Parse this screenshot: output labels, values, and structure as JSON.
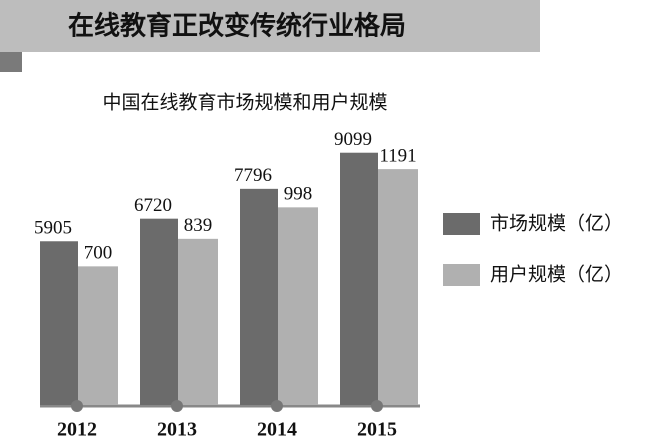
{
  "banner": "在线教育正改变传统行业格局",
  "chart_data": {
    "type": "bar",
    "title": "中国在线教育市场规模和用户规模",
    "categories": [
      "2012",
      "2013",
      "2014",
      "2015"
    ],
    "series": [
      {
        "name": "市场规模（亿）",
        "color": "#6b6b6b",
        "values": [
          5905,
          6720,
          7796,
          9099
        ]
      },
      {
        "name": "用户规模（亿）",
        "color": "#b0b0b0",
        "values": [
          700,
          839,
          998,
          1191
        ],
        "axis": "y2"
      }
    ],
    "ylim": [
      0,
      11000
    ],
    "y2lim": [
      0,
      1540
    ],
    "legend": "right"
  }
}
